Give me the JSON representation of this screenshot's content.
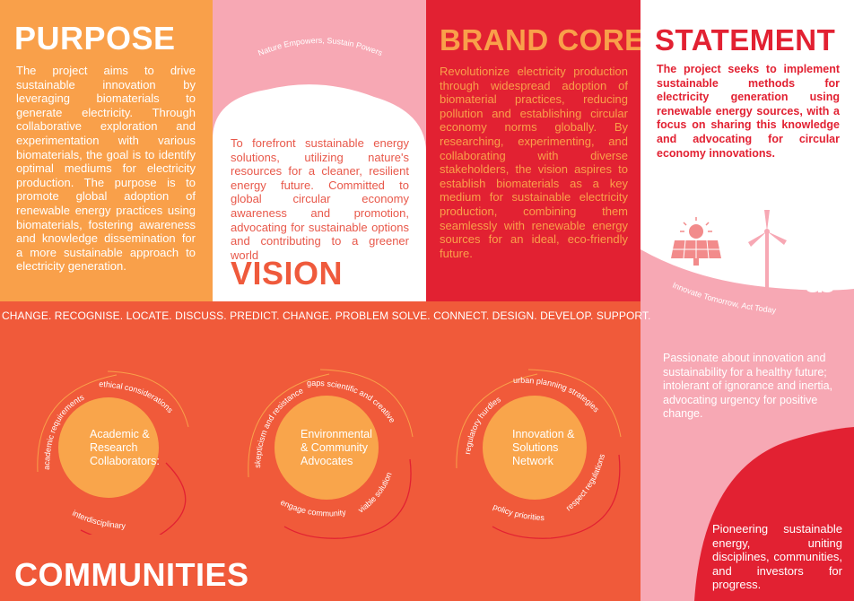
{
  "purpose": {
    "title": "PURPOSE",
    "body": "The project aims to drive sustainable innovation by leveraging biomaterials to generate electricity. Through collaborative exploration and experimentation with various biomaterials, the goal is to identify optimal mediums for electricity production. The purpose is to promote global adoption of renewable energy practices using biomaterials, fostering awareness and knowledge dissemination for a more sustainable approach to electricity generation."
  },
  "vision": {
    "tagline": "Nature Empowers, Sustain Powers",
    "body": "To forefront sustainable energy solutions, utilizing nature's resources for a cleaner, resilient energy future. Committed to global circular economy awareness and promotion, advocating for sustainable options and contributing to a greener world",
    "title": "VISION"
  },
  "brand_core": {
    "title": "BRAND CORE",
    "body": "Revolutionize electricity production through widespread adoption of biomaterial practices, reducing pollution and establishing circular economy norms globally. By researching, experimenting, and collaborating with diverse stakeholders, the vision aspires to establish biomaterials as a key medium for sustainable electricity production, combining them seamlessly with renewable energy sources for an ideal, eco-friendly future."
  },
  "statement": {
    "title": "STATEMENT",
    "body": "The project seeks to implement sustainable methods for electricity generation using renewable energy sources, with a focus on sharing this knowledge and advocating for circular economy innovations.",
    "tagline": "Innovate Tomorrow, Act Today",
    "passion": "Passionate about innovation and sustainability for a healthy future; intolerant of ignorance and inertia, advocating urgency for positive change.",
    "pioneering": "Pioneering sustainable energy, uniting disciplines, communities, and investors for progress."
  },
  "strip": "CHANGE. RECOGNISE. LOCATE. DISCUSS. PREDICT. CHANGE. PROBLEM SOLVE. CONNECT. DESIGN. DEVELOP. SUPPORT.",
  "communities": {
    "title": "COMMUNITIES",
    "groups": [
      {
        "name": "Academic & Research Collaborators:",
        "labels": [
          "academic requirements",
          "ethical considerations",
          "interdisciplinary"
        ]
      },
      {
        "name": "Environmental & Community Advocates",
        "labels": [
          "skepticism and resistance",
          "gaps scientific and creative",
          "engage community",
          "viable solution"
        ]
      },
      {
        "name": "Innovation & Solutions Network",
        "labels": [
          "regulatory hurdles",
          "urban planning strategies",
          "policy priorities",
          "respect regulations"
        ]
      }
    ]
  },
  "colors": {
    "orange": "#f9a04a",
    "pink": "#f7a8b4",
    "red": "#e22132",
    "coral": "#f05a3a",
    "white": "#ffffff"
  },
  "icons": [
    "solar-panel-icon",
    "wind-turbine-icon",
    "plug-plant-icon"
  ]
}
